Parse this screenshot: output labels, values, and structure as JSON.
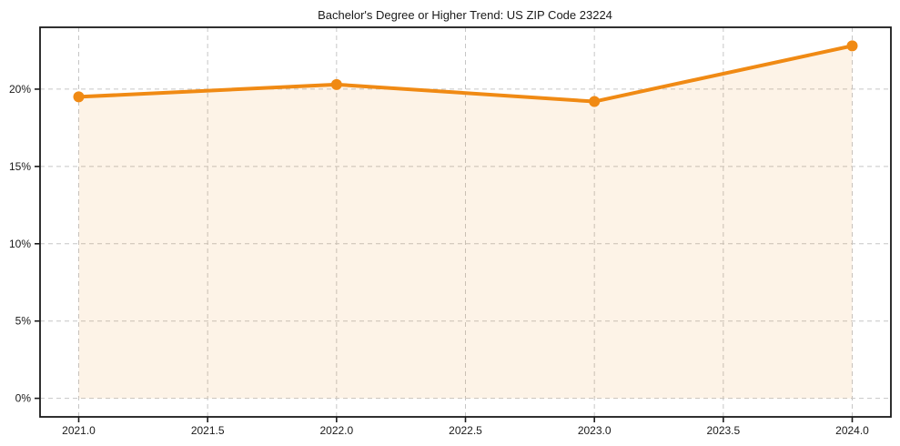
{
  "chart_data": {
    "type": "line",
    "title": "Bachelor's Degree or Higher Trend: US ZIP Code 23224",
    "x": [
      2021.0,
      2022.0,
      2023.0,
      2024.0
    ],
    "values": [
      19.5,
      20.3,
      19.2,
      22.8
    ],
    "value_unit": "%",
    "x_ticks": [
      2021.0,
      2021.5,
      2022.0,
      2022.5,
      2023.0,
      2023.5,
      2024.0
    ],
    "x_tick_labels": [
      "2021.0",
      "2021.5",
      "2022.0",
      "2022.5",
      "2023.0",
      "2023.5",
      "2024.0"
    ],
    "y_ticks": [
      0,
      5,
      10,
      15,
      20
    ],
    "y_tick_labels": [
      "0%",
      "5%",
      "10%",
      "15%",
      "20%"
    ],
    "xlim": [
      2020.85,
      2024.15
    ],
    "ylim": [
      -1.2,
      24.0
    ],
    "grid": true,
    "grid_style": "dashed",
    "legend": false,
    "marker": "circle",
    "line_color": "#f08a14",
    "fill_color": "#f08a14",
    "fill_opacity": 0.1,
    "grid_color": "#c6c6c6",
    "axis_color": "#1a1a1a",
    "text_color": "#1a1a1a",
    "background_color": "#ffffff"
  }
}
